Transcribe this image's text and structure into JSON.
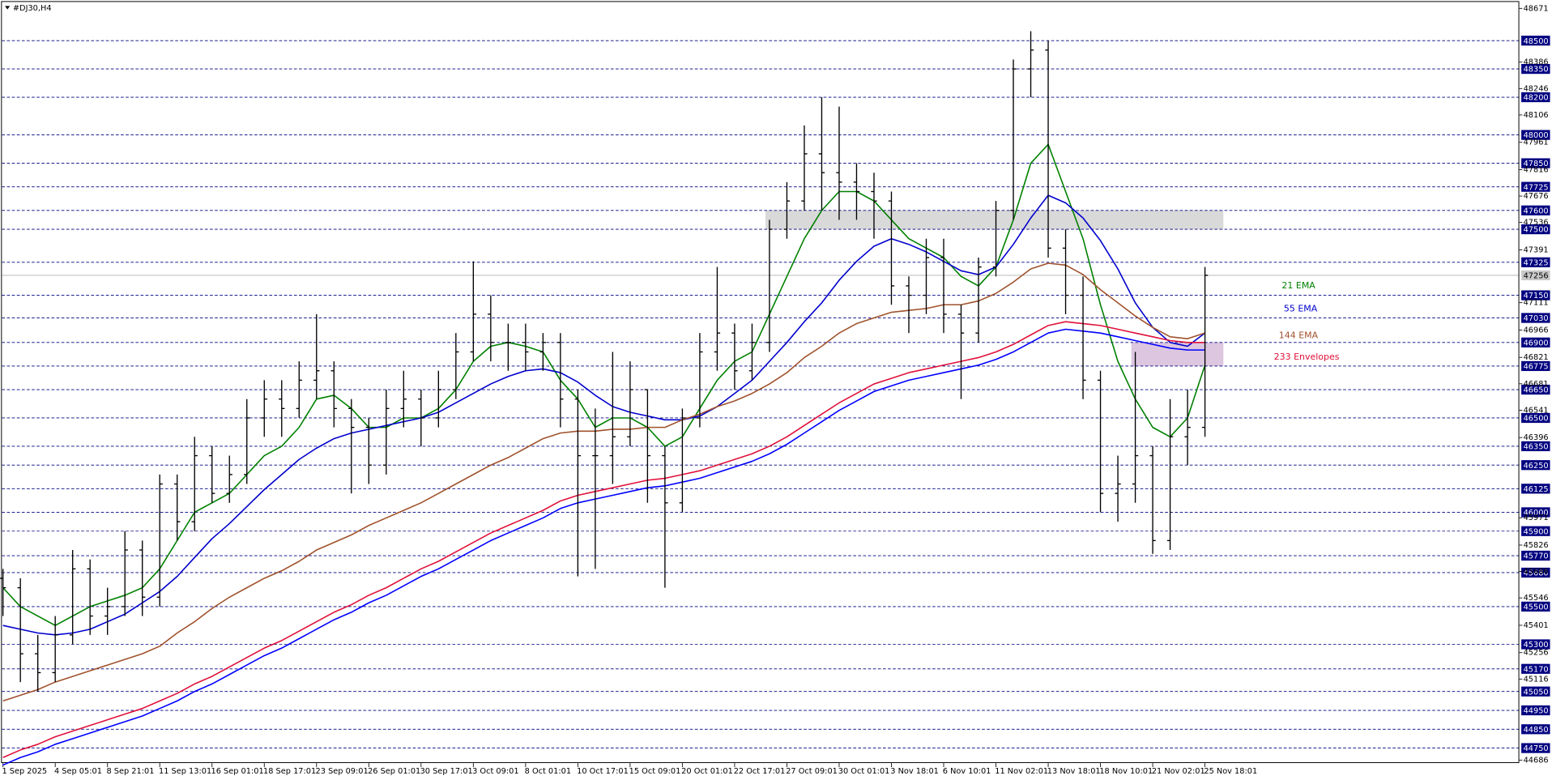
{
  "chart_data": {
    "type": "ohlc",
    "title": "#DJ30,H4",
    "categories": [
      "1 Sep 2025",
      null,
      null,
      "4 Sep 05:01",
      null,
      null,
      "8 Sep 21:01",
      null,
      null,
      "11 Sep 13:01",
      null,
      null,
      "16 Sep 01:01",
      null,
      null,
      "18 Sep 17:01",
      null,
      null,
      "23 Sep 09:01",
      null,
      null,
      "26 Sep 01:01",
      null,
      null,
      "30 Sep 17:01",
      null,
      null,
      "3 Oct 09:01",
      null,
      null,
      "8 Oct 01:01",
      null,
      null,
      "10 Oct 17:01",
      null,
      null,
      "15 Oct 09:01",
      null,
      null,
      "20 Oct 01:01",
      null,
      null,
      "22 Oct 17:01",
      null,
      null,
      "27 Oct 09:01",
      null,
      null,
      "30 Oct 01:01",
      null,
      null,
      "3 Nov 18:01",
      null,
      null,
      "6 Nov 10:01",
      null,
      null,
      "11 Nov 02:01",
      null,
      null,
      "13 Nov 18:01",
      null,
      null,
      "18 Nov 10:01",
      null,
      null,
      "21 Nov 02:01",
      null,
      null,
      "25 Nov 18:01"
    ],
    "open": [
      45650,
      45600,
      45250,
      45150,
      45350,
      45700,
      45450,
      45500,
      45800,
      45550,
      46150,
      45950,
      46300,
      46100,
      46200,
      46500,
      46600,
      46550,
      46700,
      46750,
      46550,
      46450,
      46250,
      46550,
      46600,
      46500,
      46650,
      46850,
      47050,
      46900,
      46900,
      46850,
      46900,
      46600,
      46300,
      46300,
      46400,
      46650,
      46300,
      46050,
      46500,
      46850,
      46950,
      46750,
      46900,
      47500,
      47650,
      47900,
      47800,
      47750,
      47700,
      47650,
      47200,
      47150,
      47350,
      47050,
      46950,
      47300,
      47600,
      48350,
      48450,
      47400,
      47150,
      46700,
      46100,
      46150,
      46300,
      45850,
      46400,
      46450
    ],
    "high": [
      45700,
      45650,
      45350,
      45450,
      45800,
      45750,
      45600,
      45900,
      45850,
      46200,
      46200,
      46400,
      46350,
      46300,
      46600,
      46700,
      46700,
      46800,
      47050,
      46800,
      46600,
      46500,
      46650,
      46750,
      46650,
      46750,
      46950,
      47330,
      47150,
      47000,
      47000,
      46950,
      46950,
      46650,
      46550,
      46850,
      46800,
      46650,
      46350,
      46550,
      46950,
      47300,
      47000,
      47000,
      47550,
      47750,
      48050,
      48200,
      48150,
      47850,
      47800,
      47700,
      47250,
      47450,
      47450,
      47100,
      47350,
      47650,
      48400,
      48550,
      48500,
      47500,
      47250,
      46750,
      46300,
      46850,
      46350,
      46600,
      46650,
      47300
    ],
    "low": [
      45450,
      45100,
      45050,
      45100,
      45300,
      45350,
      45350,
      45450,
      45450,
      45500,
      45850,
      45900,
      46050,
      46050,
      46150,
      46400,
      46400,
      46500,
      46600,
      46450,
      46100,
      46150,
      46200,
      46450,
      46350,
      46450,
      46600,
      46800,
      46800,
      46750,
      46750,
      46750,
      46450,
      45660,
      45700,
      46150,
      46350,
      46050,
      45600,
      46000,
      46450,
      46750,
      46650,
      46700,
      46850,
      47450,
      47600,
      47600,
      47550,
      47550,
      47450,
      47100,
      46950,
      47050,
      46950,
      46600,
      46900,
      47250,
      47550,
      48200,
      47350,
      47050,
      46600,
      46000,
      45950,
      46050,
      45780,
      45800,
      46250,
      46400
    ],
    "close": [
      45600,
      45250,
      45150,
      45350,
      45700,
      45450,
      45500,
      45800,
      45550,
      46150,
      45950,
      46300,
      46100,
      46200,
      46500,
      46600,
      46550,
      46700,
      46750,
      46550,
      46450,
      46250,
      46550,
      46600,
      46500,
      46650,
      46850,
      47050,
      46900,
      46900,
      46850,
      46900,
      46600,
      46300,
      46300,
      46400,
      46650,
      46300,
      46050,
      46500,
      46850,
      46950,
      46750,
      46900,
      47500,
      47650,
      47900,
      47800,
      47750,
      47700,
      47650,
      47200,
      47150,
      47350,
      47050,
      46950,
      47300,
      47600,
      48350,
      48450,
      47400,
      47150,
      46700,
      46100,
      46150,
      46300,
      45850,
      46400,
      46450,
      47256
    ],
    "color": "#000000",
    "series": [
      {
        "name": "21 EMA",
        "color": "#008000",
        "values": [
          45600,
          45500,
          45450,
          45400,
          45450,
          45500,
          45530,
          45560,
          45600,
          45700,
          45850,
          46000,
          46050,
          46100,
          46200,
          46300,
          46350,
          46450,
          46600,
          46620,
          46550,
          46450,
          46450,
          46500,
          46500,
          46550,
          46650,
          46800,
          46880,
          46900,
          46880,
          46850,
          46700,
          46600,
          46450,
          46500,
          46500,
          46450,
          46350,
          46400,
          46550,
          46700,
          46800,
          46850,
          47050,
          47250,
          47450,
          47600,
          47700,
          47700,
          47650,
          47550,
          47450,
          47400,
          47350,
          47250,
          47200,
          47300,
          47550,
          47850,
          47950,
          47700,
          47450,
          47100,
          46800,
          46600,
          46450,
          46400,
          46500,
          46780
        ]
      },
      {
        "name": "55 EMA",
        "color": "#0000cd",
        "values": [
          45400,
          45380,
          45360,
          45350,
          45360,
          45380,
          45420,
          45460,
          45520,
          45580,
          45660,
          45760,
          45860,
          45940,
          46030,
          46120,
          46200,
          46280,
          46340,
          46390,
          46420,
          46440,
          46460,
          46480,
          46500,
          46530,
          46580,
          46630,
          46680,
          46720,
          46750,
          46760,
          46740,
          46690,
          46620,
          46560,
          46530,
          46510,
          46490,
          46490,
          46510,
          46560,
          46630,
          46700,
          46800,
          46900,
          47010,
          47110,
          47230,
          47330,
          47410,
          47450,
          47420,
          47380,
          47330,
          47280,
          47260,
          47300,
          47420,
          47560,
          47680,
          47640,
          47560,
          47440,
          47290,
          47110,
          46980,
          46900,
          46880,
          46950
        ]
      },
      {
        "name": "144 EMA",
        "color": "#a0522d",
        "values": [
          45000,
          45030,
          45060,
          45100,
          45130,
          45160,
          45190,
          45220,
          45250,
          45290,
          45360,
          45420,
          45490,
          45550,
          45600,
          45650,
          45690,
          45740,
          45800,
          45840,
          45880,
          45930,
          45970,
          46010,
          46050,
          46100,
          46150,
          46200,
          46250,
          46290,
          46340,
          46390,
          46420,
          46430,
          46430,
          46440,
          46440,
          46450,
          46450,
          46490,
          46520,
          46560,
          46590,
          46630,
          46680,
          46740,
          46820,
          46880,
          46950,
          47000,
          47030,
          47060,
          47070,
          47080,
          47100,
          47100,
          47120,
          47160,
          47220,
          47290,
          47320,
          47310,
          47260,
          47180,
          47110,
          47040,
          46980,
          46930,
          46920,
          46950
        ]
      },
      {
        "name": "233 Envelopes",
        "color": "#e0103a",
        "values": [
          44700,
          44740,
          44770,
          44810,
          44840,
          44870,
          44900,
          44930,
          44960,
          45000,
          45040,
          45090,
          45130,
          45180,
          45230,
          45280,
          45320,
          45370,
          45420,
          45470,
          45510,
          45560,
          45600,
          45650,
          45700,
          45740,
          45790,
          45840,
          45890,
          45930,
          45970,
          46010,
          46060,
          46090,
          46110,
          46130,
          46150,
          46170,
          46180,
          46200,
          46220,
          46250,
          46280,
          46310,
          46350,
          46400,
          46460,
          46520,
          46580,
          46630,
          46680,
          46710,
          46740,
          46760,
          46780,
          46800,
          46820,
          46850,
          46890,
          46940,
          46990,
          47010,
          47000,
          46990,
          46970,
          46950,
          46930,
          46910,
          46900,
          46900
        ],
        "lower": [
          44660,
          44700,
          44730,
          44770,
          44800,
          44830,
          44860,
          44890,
          44920,
          44960,
          45000,
          45050,
          45090,
          45140,
          45190,
          45240,
          45280,
          45330,
          45380,
          45430,
          45470,
          45520,
          45560,
          45610,
          45660,
          45700,
          45750,
          45800,
          45850,
          45890,
          45930,
          45970,
          46020,
          46050,
          46070,
          46090,
          46110,
          46130,
          46140,
          46160,
          46180,
          46210,
          46240,
          46270,
          46310,
          46360,
          46420,
          46480,
          46540,
          46590,
          46640,
          46670,
          46700,
          46720,
          46740,
          46760,
          46780,
          46810,
          46850,
          46900,
          46950,
          46970,
          46960,
          46950,
          46930,
          46910,
          46890,
          46870,
          46860,
          46860
        ],
        "lower_color": "#0000ff"
      }
    ],
    "ylim": [
      44686,
      48671
    ],
    "yticks": [
      48671,
      48386,
      48246,
      48106,
      47961,
      47816,
      47676,
      47536,
      47391,
      47111,
      46966,
      46821,
      46681,
      46541,
      46396,
      45971,
      45826,
      45686,
      45546,
      45401,
      45256,
      45116,
      44686
    ],
    "levels": [
      48500,
      48350,
      48200,
      48000,
      47850,
      47725,
      47600,
      47500,
      47325,
      47150,
      47030,
      46900,
      46775,
      46650,
      46500,
      46350,
      46250,
      46125,
      46000,
      45900,
      45770,
      45680,
      45500,
      45300,
      45170,
      45050,
      44950,
      44850,
      44750
    ],
    "level_color": "#000080",
    "last": 47256,
    "zones": [
      {
        "low": 47500,
        "high": 47600,
        "start": 44,
        "color": "#d9d9d9"
      },
      {
        "low": 46775,
        "high": 46900,
        "start": 65,
        "color": "#dcc6e0"
      }
    ]
  }
}
